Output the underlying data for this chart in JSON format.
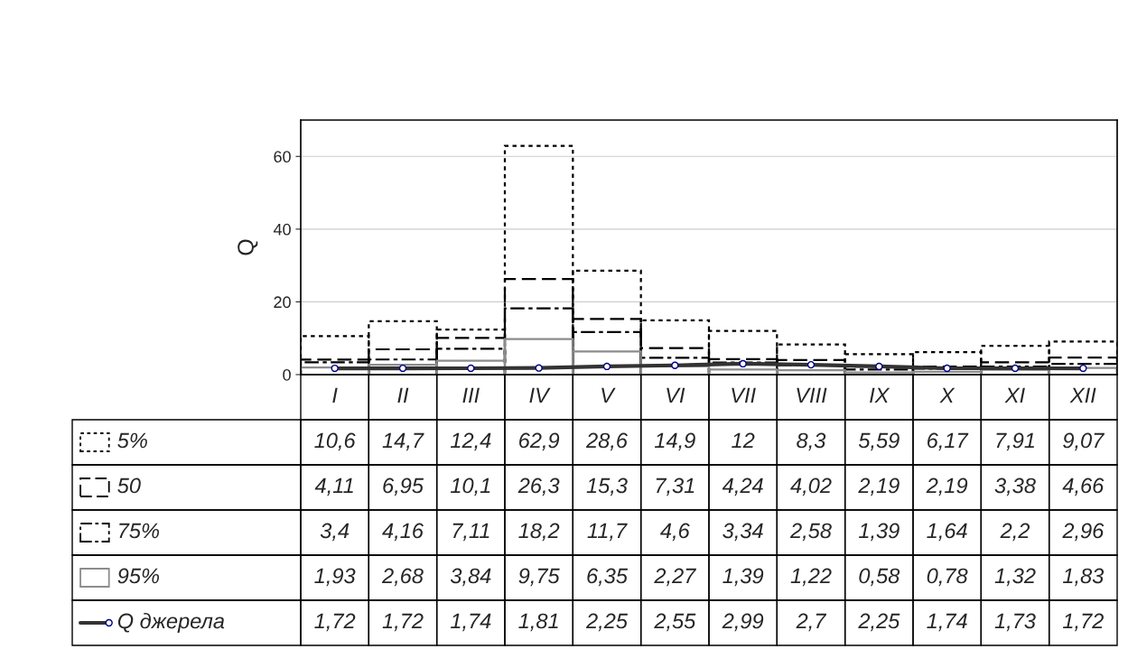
{
  "chart_data": {
    "type": "bar",
    "ylabel": "Q",
    "categories": [
      "I",
      "II",
      "III",
      "IV",
      "V",
      "VI",
      "VII",
      "VIII",
      "IX",
      "X",
      "XI",
      "XII"
    ],
    "ylim": [
      0,
      70
    ],
    "yticks": [
      0,
      20,
      40,
      60
    ],
    "grid": "y",
    "legend": "bottom",
    "series": [
      {
        "name": "5%",
        "color": "#000000",
        "line_style": "dotted",
        "values": [
          10.6,
          14.7,
          12.4,
          62.9,
          28.6,
          14.9,
          12,
          8.3,
          5.59,
          6.17,
          7.91,
          9.07
        ],
        "value_labels": [
          "10,6",
          "14,7",
          "12,4",
          "62,9",
          "28,6",
          "14,9",
          "12",
          "8,3",
          "5,59",
          "6,17",
          "7,91",
          "9,07"
        ]
      },
      {
        "name": "50",
        "color": "#000000",
        "line_style": "dashed",
        "values": [
          4.11,
          6.95,
          10.1,
          26.3,
          15.3,
          7.31,
          4.24,
          4.02,
          2.19,
          2.19,
          3.38,
          4.66
        ],
        "value_labels": [
          "4,11",
          "6,95",
          "10,1",
          "26,3",
          "15,3",
          "7,31",
          "4,24",
          "4,02",
          "2,19",
          "2,19",
          "3,38",
          "4,66"
        ]
      },
      {
        "name": "75%",
        "color": "#000000",
        "line_style": "dashdot",
        "values": [
          3.4,
          4.16,
          7.11,
          18.2,
          11.7,
          4.6,
          3.34,
          2.58,
          1.39,
          1.64,
          2.2,
          2.96
        ],
        "value_labels": [
          "3,4",
          "4,16",
          "7,11",
          "18,2",
          "11,7",
          "4,6",
          "3,34",
          "2,58",
          "1,39",
          "1,64",
          "2,2",
          "2,96"
        ]
      },
      {
        "name": "95%",
        "color": "#8c8c8c",
        "line_style": "solid",
        "values": [
          1.93,
          2.68,
          3.84,
          9.75,
          6.35,
          2.27,
          1.39,
          1.22,
          0.58,
          0.78,
          1.32,
          1.83
        ],
        "value_labels": [
          "1,93",
          "2,68",
          "3,84",
          "9,75",
          "6,35",
          "2,27",
          "1,39",
          "1,22",
          "0,58",
          "0,78",
          "1,32",
          "1,83"
        ]
      },
      {
        "name": "Q джерела",
        "type": "line",
        "color": "#333333",
        "marker": "circle",
        "line_style": "solid",
        "values": [
          1.72,
          1.72,
          1.74,
          1.81,
          2.25,
          2.55,
          2.99,
          2.7,
          2.25,
          1.74,
          1.73,
          1.72
        ],
        "value_labels": [
          "1,72",
          "1,72",
          "1,74",
          "1,81",
          "2,25",
          "2,55",
          "2,99",
          "2,7",
          "2,25",
          "1,74",
          "1,73",
          "1,72"
        ]
      }
    ]
  }
}
